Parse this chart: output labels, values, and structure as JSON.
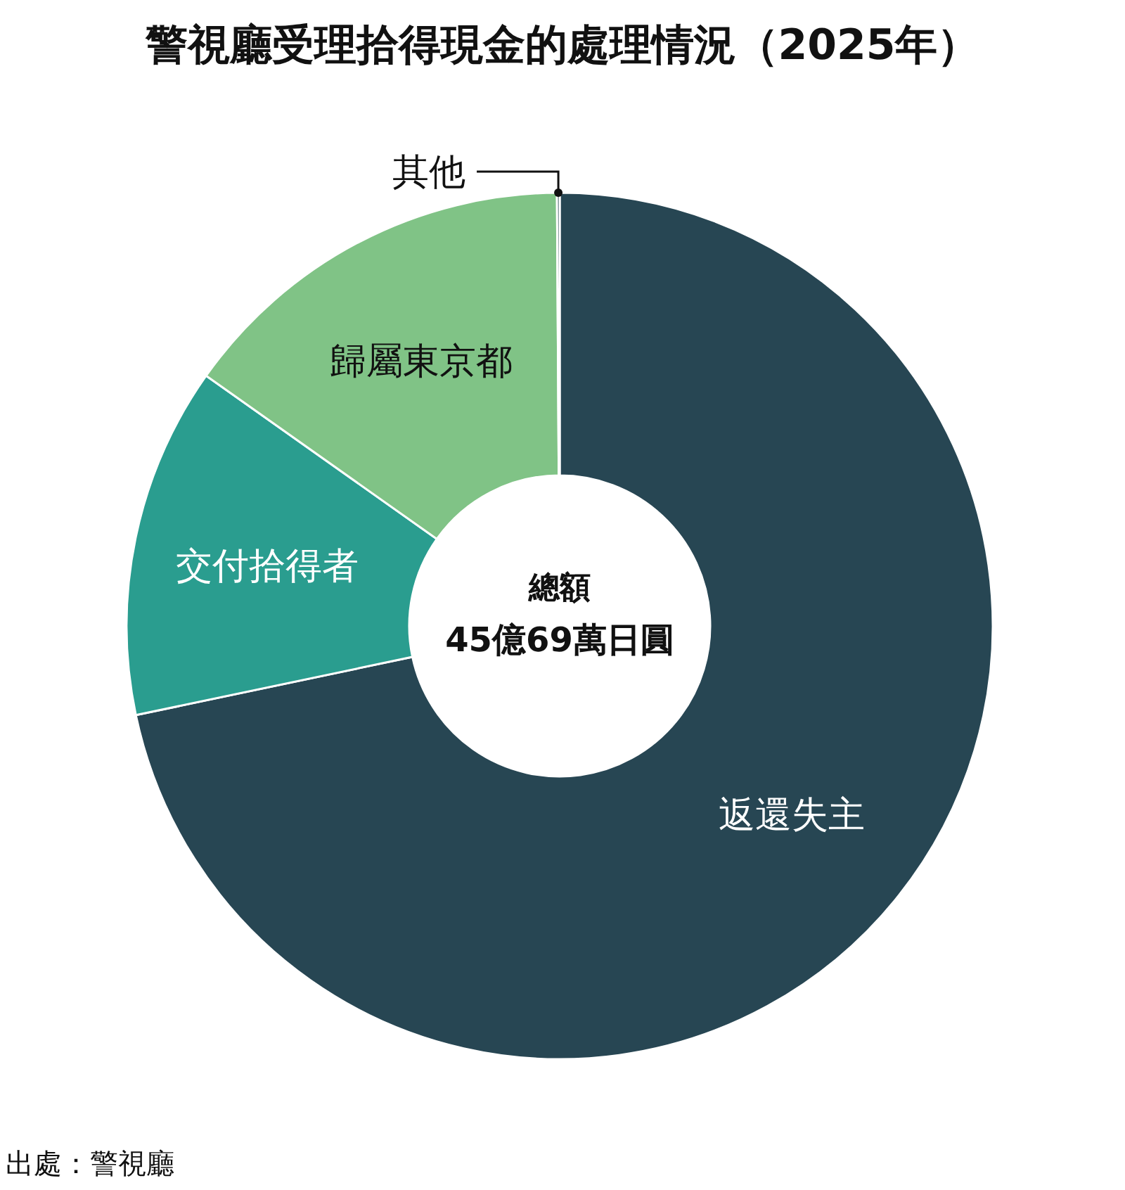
{
  "chart_data": {
    "type": "donut",
    "title": "警視廳受理拾得現金的處理情況（2025年）",
    "categories": [
      "返還失主",
      "交付拾得者",
      "歸屬東京都",
      "其他"
    ],
    "values": [
      71.7,
      13.1,
      15.1,
      0.1
    ],
    "colors": [
      "#274653",
      "#2a9d8f",
      "#80c386",
      "#1b3a44"
    ],
    "annotations": [
      "總額\n45億69萬日圓",
      "出處：警視廳"
    ]
  }
}
